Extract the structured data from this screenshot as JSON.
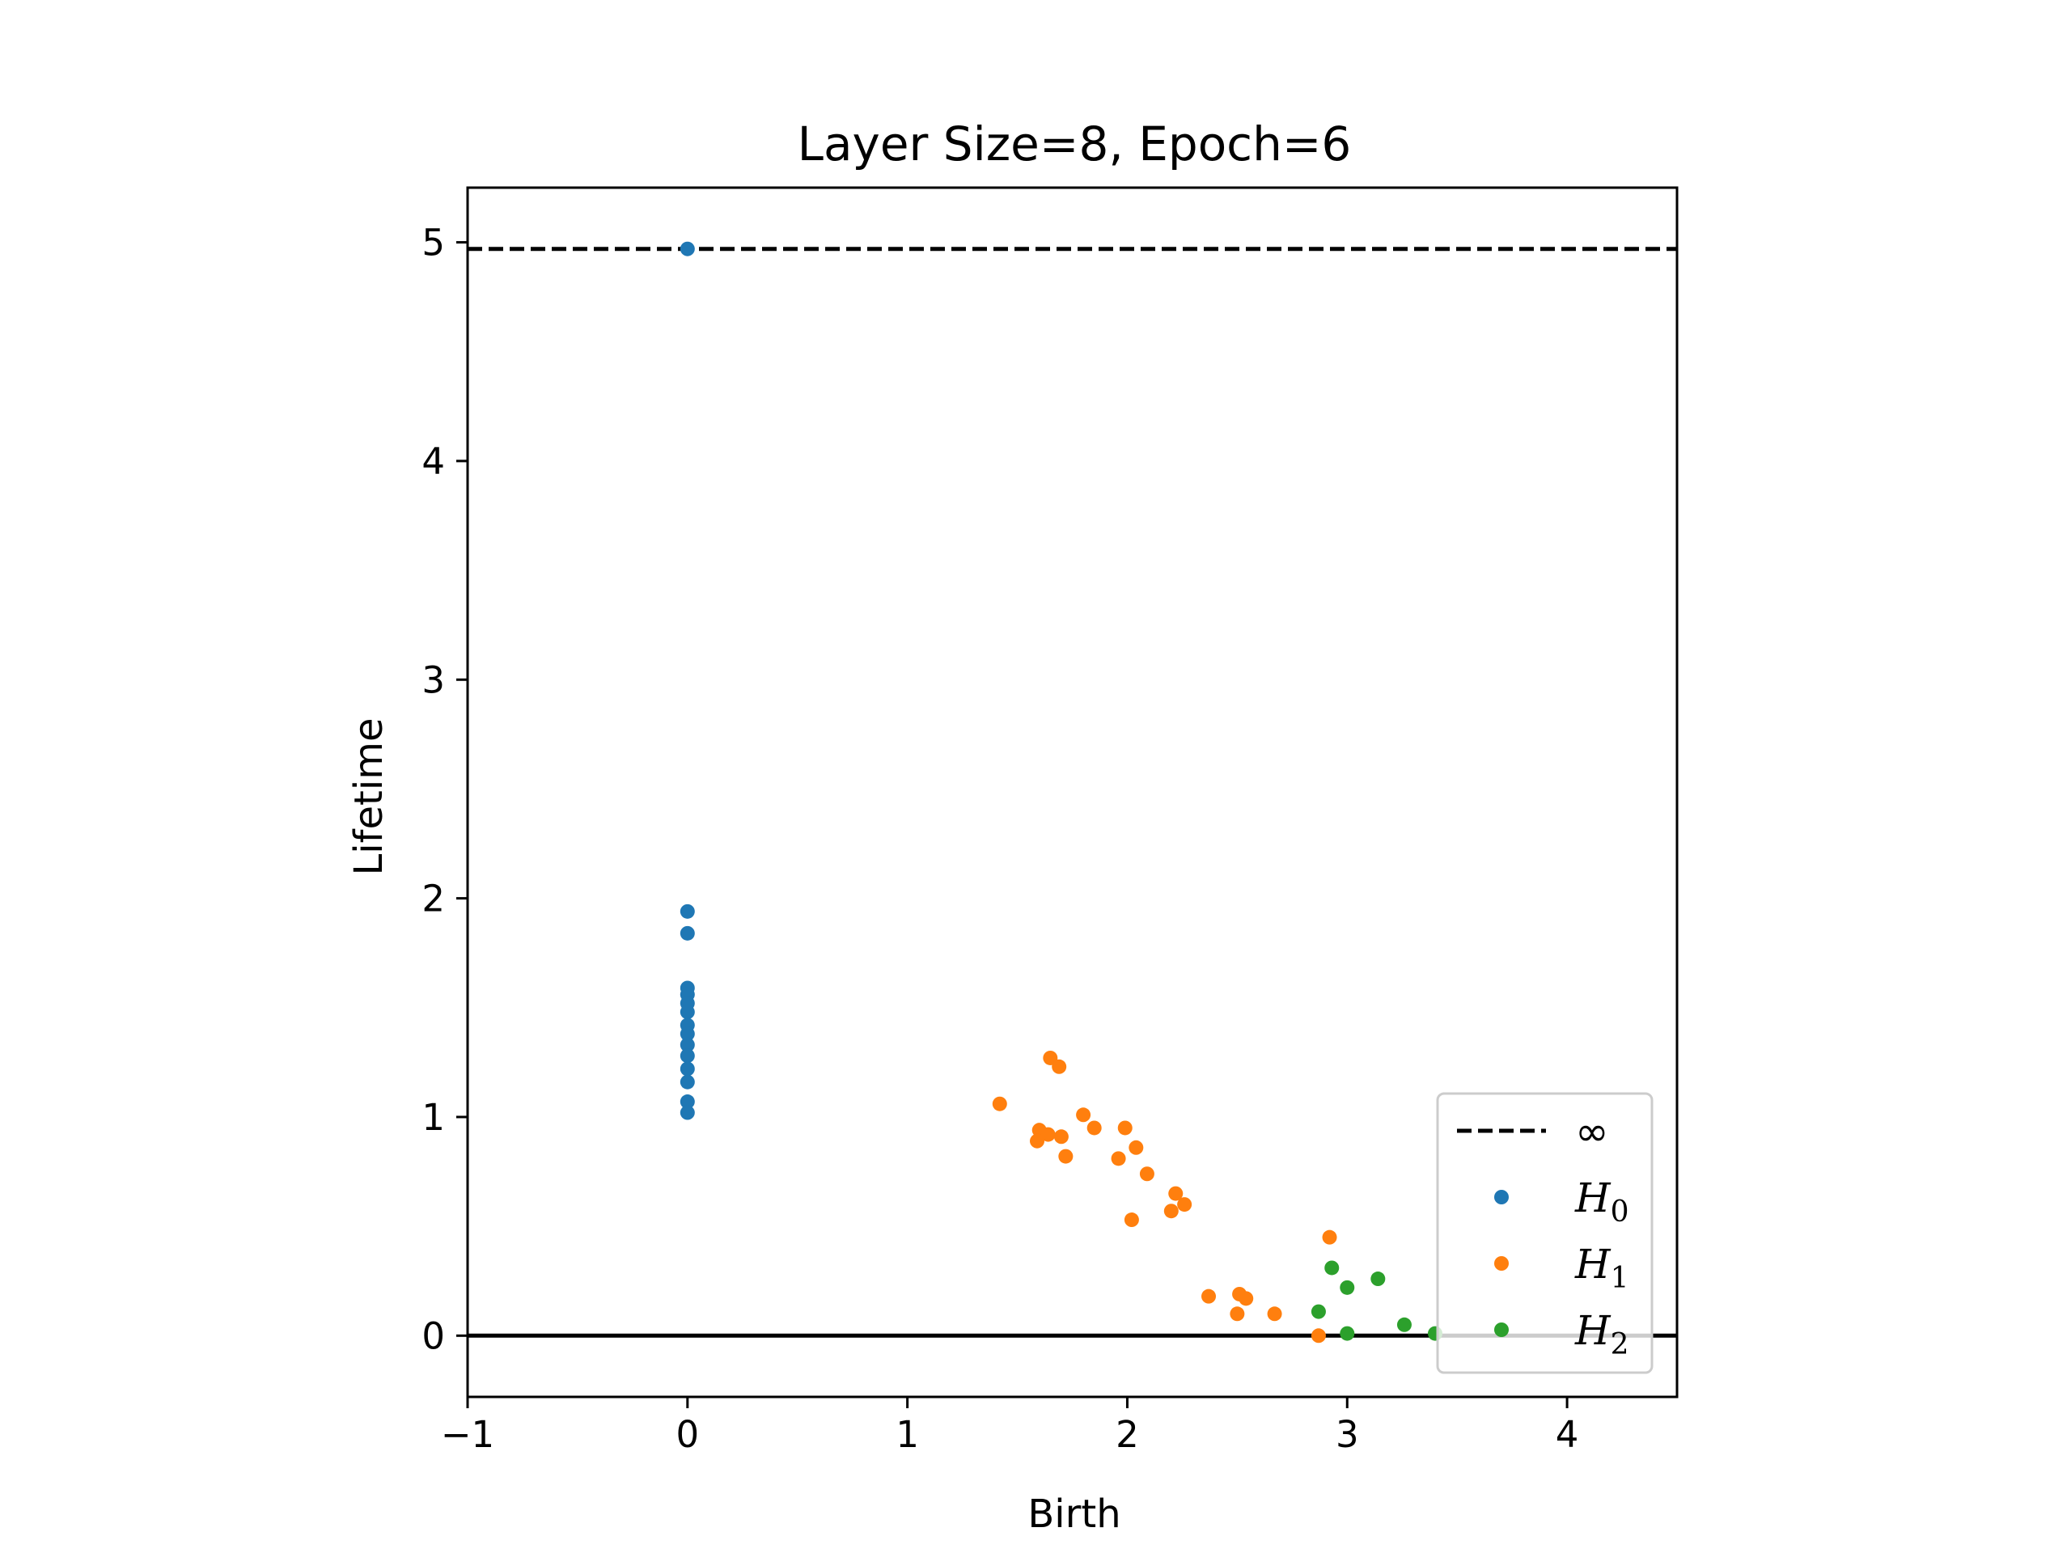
{
  "chart_data": {
    "type": "scatter",
    "title": "Layer Size=8, Epoch=6",
    "xlabel": "Birth",
    "ylabel": "Lifetime",
    "xlim": [
      -1,
      4.5
    ],
    "ylim": [
      -0.28,
      5.25
    ],
    "xticks": [
      -1,
      0,
      1,
      2,
      3,
      4
    ],
    "yticks": [
      0,
      1,
      2,
      3,
      4,
      5
    ],
    "xtick_labels": [
      "−1",
      "0",
      "1",
      "2",
      "3",
      "4"
    ],
    "ytick_labels": [
      "0",
      "1",
      "2",
      "3",
      "4",
      "5"
    ],
    "grid": false,
    "legend_position": "lower-right",
    "infinity_line": {
      "y": 4.97,
      "label": "∞",
      "color": "#000000",
      "style": "dashed"
    },
    "zero_line": {
      "y": 0,
      "color": "#000000"
    },
    "series": [
      {
        "name": "H",
        "subscript": "0",
        "color": "#1f77b4",
        "points": [
          [
            0,
            4.97
          ],
          [
            0,
            1.94
          ],
          [
            0,
            1.84
          ],
          [
            0,
            1.59
          ],
          [
            0,
            1.56
          ],
          [
            0,
            1.52
          ],
          [
            0,
            1.48
          ],
          [
            0,
            1.42
          ],
          [
            0,
            1.38
          ],
          [
            0,
            1.33
          ],
          [
            0,
            1.28
          ],
          [
            0,
            1.22
          ],
          [
            0,
            1.16
          ],
          [
            0,
            1.07
          ],
          [
            0,
            1.02
          ]
        ]
      },
      {
        "name": "H",
        "subscript": "1",
        "color": "#ff7f0e",
        "points": [
          [
            1.42,
            1.06
          ],
          [
            1.65,
            1.27
          ],
          [
            1.69,
            1.23
          ],
          [
            1.8,
            1.01
          ],
          [
            1.6,
            0.94
          ],
          [
            1.64,
            0.92
          ],
          [
            1.7,
            0.91
          ],
          [
            1.59,
            0.89
          ],
          [
            1.72,
            0.82
          ],
          [
            1.85,
            0.95
          ],
          [
            1.99,
            0.95
          ],
          [
            1.96,
            0.81
          ],
          [
            2.04,
            0.86
          ],
          [
            2.09,
            0.74
          ],
          [
            2.22,
            0.65
          ],
          [
            2.26,
            0.6
          ],
          [
            2.2,
            0.57
          ],
          [
            2.02,
            0.53
          ],
          [
            2.92,
            0.45
          ],
          [
            2.37,
            0.18
          ],
          [
            2.51,
            0.19
          ],
          [
            2.54,
            0.17
          ],
          [
            2.5,
            0.1
          ],
          [
            2.67,
            0.1
          ],
          [
            2.87,
            0.0
          ]
        ]
      },
      {
        "name": "H",
        "subscript": "2",
        "color": "#2ca02c",
        "points": [
          [
            2.93,
            0.31
          ],
          [
            3.14,
            0.26
          ],
          [
            3.0,
            0.22
          ],
          [
            2.87,
            0.11
          ],
          [
            3.26,
            0.05
          ],
          [
            3.0,
            0.01
          ],
          [
            3.4,
            0.01
          ]
        ]
      }
    ]
  }
}
